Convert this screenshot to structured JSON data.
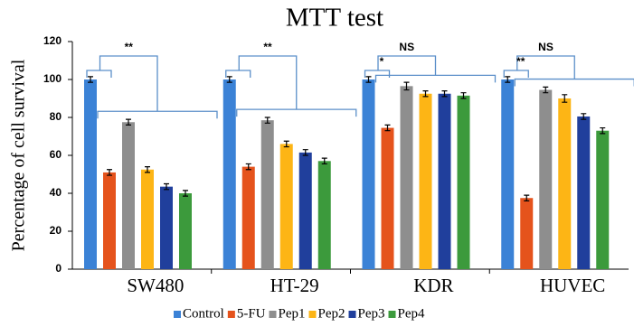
{
  "chart_data": {
    "type": "bar",
    "title": "MTT test",
    "ylabel": "Percentage of cell survival",
    "categories": [
      "SW480",
      "HT-29",
      "KDR",
      "HUVEC"
    ],
    "series": [
      {
        "name": "Control",
        "color": "#3b82d6",
        "values": [
          100,
          100,
          100,
          100
        ],
        "errors": [
          1.5,
          1.5,
          1.5,
          1.5
        ]
      },
      {
        "name": "5-FU",
        "color": "#e5531c",
        "values": [
          51,
          54,
          74.5,
          37.5
        ],
        "errors": [
          1.5,
          1.5,
          1.5,
          1.5
        ]
      },
      {
        "name": "Pep1",
        "color": "#8e8e8e",
        "values": [
          77.5,
          78.5,
          96.5,
          94.5
        ],
        "errors": [
          1.5,
          1.5,
          2,
          1.5
        ]
      },
      {
        "name": "Pep2",
        "color": "#fdb515",
        "values": [
          52.5,
          66,
          92.5,
          90
        ],
        "errors": [
          1.5,
          1.5,
          1.5,
          2
        ]
      },
      {
        "name": "Pep3",
        "color": "#203f9c",
        "values": [
          43.5,
          61.5,
          92.5,
          80.5
        ],
        "errors": [
          1.5,
          1.5,
          1.5,
          1.5
        ]
      },
      {
        "name": "Pep4",
        "color": "#3c9a3c",
        "values": [
          40,
          57,
          91.5,
          73
        ],
        "errors": [
          1.5,
          1.5,
          1.5,
          1.5
        ]
      }
    ],
    "significance": [
      {
        "top": "**"
      },
      {
        "top": "**"
      },
      {
        "pair": "*",
        "top": "NS"
      },
      {
        "pair": "**",
        "top": "NS"
      }
    ],
    "ylim": [
      0,
      120
    ],
    "yticks": [
      0,
      20,
      40,
      60,
      80,
      100,
      120
    ]
  }
}
